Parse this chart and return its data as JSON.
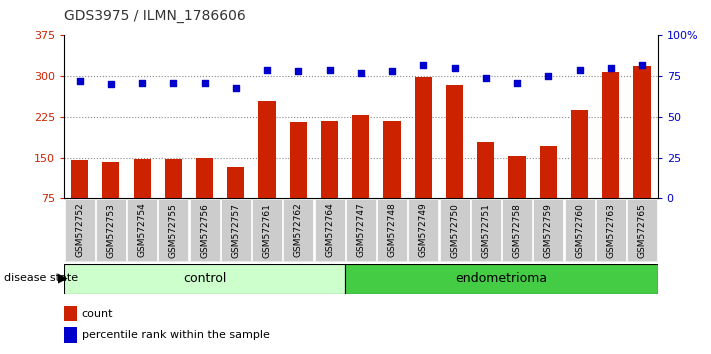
{
  "title": "GDS3975 / ILMN_1786606",
  "categories": [
    "GSM572752",
    "GSM572753",
    "GSM572754",
    "GSM572755",
    "GSM572756",
    "GSM572757",
    "GSM572761",
    "GSM572762",
    "GSM572764",
    "GSM572747",
    "GSM572748",
    "GSM572749",
    "GSM572750",
    "GSM572751",
    "GSM572758",
    "GSM572759",
    "GSM572760",
    "GSM572763",
    "GSM572765"
  ],
  "bar_values": [
    145,
    142,
    147,
    148,
    150,
    133,
    255,
    215,
    218,
    228,
    218,
    298,
    284,
    178,
    152,
    171,
    237,
    308,
    318
  ],
  "dot_values_pct": [
    72,
    70,
    71,
    71,
    71,
    68,
    79,
    78,
    79,
    77,
    78,
    82,
    80,
    74,
    71,
    75,
    79,
    80,
    82
  ],
  "control_count": 9,
  "endometrioma_count": 10,
  "ylim_left": [
    75,
    375
  ],
  "ylim_right": [
    0,
    100
  ],
  "yticks_left": [
    75,
    150,
    225,
    300,
    375
  ],
  "yticks_right": [
    0,
    25,
    50,
    75,
    100
  ],
  "bar_color": "#cc2200",
  "dot_color": "#0000cc",
  "control_bg": "#ccffcc",
  "endo_bg": "#44cc44",
  "tick_bg": "#cccccc",
  "grid_color": "#888888",
  "title_color": "#333333",
  "legend_bar_label": "count",
  "legend_dot_label": "percentile rank within the sample",
  "disease_state_label": "disease state",
  "control_label": "control",
  "endo_label": "endometrioma"
}
